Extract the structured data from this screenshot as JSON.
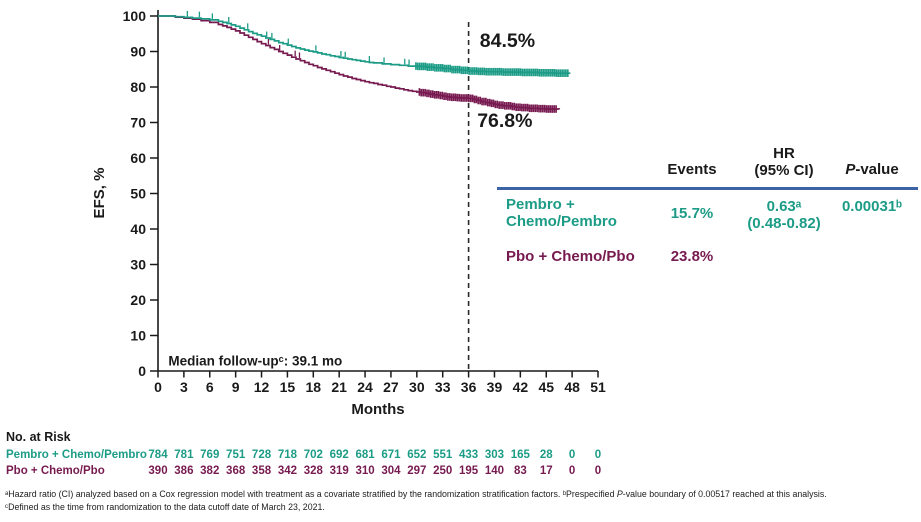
{
  "colors": {
    "teal": "#1c9c86",
    "maroon": "#771a50",
    "navy": "#3c63a5",
    "axis": "#1a1a1a",
    "dashed": "#2b2b2b"
  },
  "table": {
    "header": {
      "events": "Events",
      "hr_line1": "HR",
      "hr_line2": "(95% CI)",
      "pvalue_parts": [
        "P",
        "-value"
      ]
    },
    "rows": [
      {
        "name_lines": [
          "Pembro +",
          "Chemo/Pembro"
        ],
        "events": "15.7%",
        "hr_line1": "0.63ᵃ",
        "hr_line2": "(0.48-0.82)",
        "pvalue": "0.00031ᵇ"
      },
      {
        "name_lines": [
          "Pbo + Chemo/Pbo"
        ],
        "events": "23.8%",
        "hr_line1": "",
        "hr_line2": "",
        "pvalue": ""
      }
    ]
  },
  "footnotes": {
    "line1_parts": [
      "ᵃHazard ratio (CI) analyzed based on a Cox regression model with treatment as a covariate stratified by the randomization stratification factors. ᵇPrespecified ",
      "P",
      "-value boundary of 0.00517 reached at this analysis."
    ],
    "line2": "ᶜDefined as the time from randomization to the data cutoff date of March 23, 2021."
  },
  "chart_data": {
    "type": "line",
    "subtype": "kaplan-meier-step",
    "xlabel": "Months",
    "ylabel": "EFS, %",
    "xlim": [
      0,
      51
    ],
    "xtick_step": 3,
    "ylim": [
      0,
      100
    ],
    "ytick_step": 10,
    "grid": false,
    "dashed_reference_month": 36,
    "annotations": {
      "series_labels": [
        {
          "text": "84.5%",
          "month": 37.3,
          "percent": 91.3,
          "color_key": "teal"
        },
        {
          "text": "76.8%",
          "month": 37.0,
          "percent": 68.8,
          "color_key": "maroon"
        }
      ],
      "median_followup": {
        "text": "Median follow-upᶜ: 39.1 mo",
        "month": 1.2,
        "percent": 1.6
      }
    },
    "series": [
      {
        "name": "Pembro + Chemo/Pembro",
        "color_key": "teal",
        "points": [
          [
            0,
            100
          ],
          [
            2,
            99.8
          ],
          [
            3,
            99.6
          ],
          [
            4,
            99.4
          ],
          [
            5,
            99.2
          ],
          [
            6,
            98.9
          ],
          [
            7,
            98.5
          ],
          [
            7.5,
            98.2
          ],
          [
            8,
            97.9
          ],
          [
            8.5,
            97.5
          ],
          [
            9,
            97.1
          ],
          [
            9.5,
            96.6
          ],
          [
            10,
            96.1
          ],
          [
            10.5,
            95.6
          ],
          [
            11,
            95.1
          ],
          [
            11.5,
            94.7
          ],
          [
            12,
            94.3
          ],
          [
            12.5,
            93.8
          ],
          [
            13,
            93.4
          ],
          [
            13.5,
            93
          ],
          [
            14,
            92.5
          ],
          [
            14.5,
            92.2
          ],
          [
            15,
            91.8
          ],
          [
            15.5,
            91.4
          ],
          [
            16,
            91
          ],
          [
            16.5,
            90.7
          ],
          [
            17,
            90.4
          ],
          [
            17.5,
            90.1
          ],
          [
            18,
            89.9
          ],
          [
            18.5,
            89.6
          ],
          [
            19,
            89.3
          ],
          [
            19.5,
            89.1
          ],
          [
            20,
            88.8
          ],
          [
            20.5,
            88.6
          ],
          [
            21,
            88.3
          ],
          [
            21.5,
            88.1
          ],
          [
            22,
            87.9
          ],
          [
            22.5,
            87.7
          ],
          [
            23,
            87.5
          ],
          [
            23.5,
            87.3
          ],
          [
            24,
            87.1
          ],
          [
            24.5,
            86.9
          ],
          [
            25,
            86.8
          ],
          [
            26,
            86.5
          ],
          [
            27,
            86.3
          ],
          [
            28,
            86.1
          ],
          [
            29,
            85.9
          ],
          [
            30,
            85.8
          ],
          [
            31,
            85.6
          ],
          [
            32,
            85.4
          ],
          [
            33,
            85.2
          ],
          [
            34,
            84.9
          ],
          [
            35,
            84.7
          ],
          [
            36,
            84.5
          ],
          [
            37,
            84.4
          ],
          [
            38,
            84.3
          ],
          [
            40,
            84.2
          ],
          [
            42,
            84.1
          ],
          [
            44,
            84
          ],
          [
            46,
            83.9
          ],
          [
            47.8,
            83.9
          ]
        ],
        "censor_ticks": [
          3.4,
          4.8,
          6.3,
          8.2,
          10.4,
          12.6,
          13.2,
          15.1,
          18.3,
          21.2,
          21.7,
          24.5,
          26.2,
          28.6,
          29.1
        ],
        "censor_band": [
          29.9,
          47.5
        ]
      },
      {
        "name": "Pbo + Chemo/Pbo",
        "color_key": "maroon",
        "points": [
          [
            0,
            100
          ],
          [
            2,
            99.7
          ],
          [
            3,
            99.4
          ],
          [
            4,
            99.1
          ],
          [
            5,
            98.7
          ],
          [
            6,
            98.2
          ],
          [
            7,
            97.6
          ],
          [
            7.5,
            97.2
          ],
          [
            8,
            96.8
          ],
          [
            8.5,
            96.3
          ],
          [
            9,
            95.8
          ],
          [
            9.5,
            95.2
          ],
          [
            10,
            94.6
          ],
          [
            10.5,
            94
          ],
          [
            11,
            93.4
          ],
          [
            11.5,
            92.8
          ],
          [
            12,
            92.2
          ],
          [
            12.5,
            91.7
          ],
          [
            13,
            91.1
          ],
          [
            13.5,
            90.6
          ],
          [
            14,
            90
          ],
          [
            14.5,
            89.5
          ],
          [
            15,
            89
          ],
          [
            15.5,
            88.4
          ],
          [
            16,
            87.9
          ],
          [
            16.5,
            87.4
          ],
          [
            17,
            86.9
          ],
          [
            17.5,
            86.4
          ],
          [
            18,
            86
          ],
          [
            18.5,
            85.5
          ],
          [
            19,
            85.1
          ],
          [
            19.5,
            84.7
          ],
          [
            20,
            84.3
          ],
          [
            20.5,
            83.9
          ],
          [
            21,
            83.5
          ],
          [
            21.5,
            83.1
          ],
          [
            22,
            82.8
          ],
          [
            22.5,
            82.4
          ],
          [
            23,
            82.1
          ],
          [
            23.5,
            81.8
          ],
          [
            24,
            81.5
          ],
          [
            24.5,
            81.2
          ],
          [
            25,
            81
          ],
          [
            25.5,
            80.7
          ],
          [
            26,
            80.5
          ],
          [
            26.5,
            80.2
          ],
          [
            27,
            80
          ],
          [
            27.5,
            79.7
          ],
          [
            28,
            79.5
          ],
          [
            28.5,
            79.2
          ],
          [
            29,
            79
          ],
          [
            29.5,
            78.8
          ],
          [
            30,
            78.6
          ],
          [
            30.5,
            78.4
          ],
          [
            31,
            78.2
          ],
          [
            31.5,
            78
          ],
          [
            32,
            77.8
          ],
          [
            32.5,
            77.6
          ],
          [
            33,
            77.4
          ],
          [
            33.5,
            77.2
          ],
          [
            34,
            77.1
          ],
          [
            34.5,
            77
          ],
          [
            35,
            76.9
          ],
          [
            36,
            76.8
          ],
          [
            36.5,
            76.5
          ],
          [
            37,
            76.2
          ],
          [
            37.5,
            75.9
          ],
          [
            38,
            75.6
          ],
          [
            38.5,
            75.4
          ],
          [
            39,
            75.1
          ],
          [
            39.5,
            74.9
          ],
          [
            40,
            74.7
          ],
          [
            41,
            74.5
          ],
          [
            41.5,
            74.3
          ],
          [
            42,
            74.2
          ],
          [
            43,
            74
          ],
          [
            44,
            73.9
          ],
          [
            45,
            73.8
          ],
          [
            46.5,
            73.7
          ]
        ],
        "censor_ticks": [
          12.8,
          14.1,
          15.9,
          16.4
        ],
        "censor_band": [
          30.3,
          46.3
        ]
      }
    ],
    "at_risk": {
      "title": "No. at Risk",
      "months": [
        0,
        3,
        6,
        9,
        12,
        15,
        18,
        21,
        24,
        27,
        30,
        33,
        36,
        39,
        42,
        45,
        48,
        51
      ],
      "rows": [
        {
          "name": "Pembro + Chemo/Pembro",
          "color_key": "teal",
          "values": [
            784,
            781,
            769,
            751,
            728,
            718,
            702,
            692,
            681,
            671,
            652,
            551,
            433,
            303,
            165,
            28,
            0,
            0
          ]
        },
        {
          "name": "Pbo + Chemo/Pbo",
          "color_key": "maroon",
          "values": [
            390,
            386,
            382,
            368,
            358,
            342,
            328,
            319,
            310,
            304,
            297,
            250,
            195,
            140,
            83,
            17,
            0,
            0
          ]
        }
      ]
    }
  }
}
